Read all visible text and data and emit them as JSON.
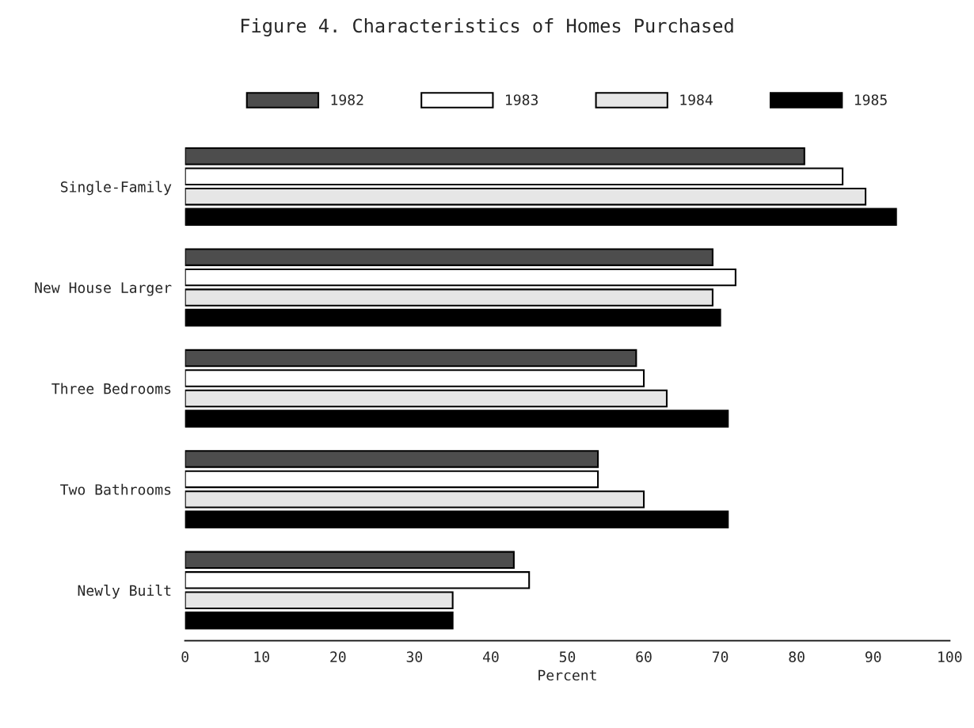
{
  "chart_data": {
    "type": "bar",
    "orientation": "horizontal",
    "title": "Figure 4. Characteristics of Homes Purchased",
    "xlabel": "Percent",
    "categories": [
      "Single-Family",
      "New House Larger",
      "Three Bedrooms",
      "Two Bathrooms",
      "Newly Built"
    ],
    "series": [
      {
        "name": "1982",
        "color": "#4d4d4d",
        "values": [
          81,
          69,
          59,
          54,
          43
        ]
      },
      {
        "name": "1983",
        "color": "#ffffff",
        "values": [
          86,
          72,
          60,
          54,
          45
        ]
      },
      {
        "name": "1984",
        "color": "#e6e6e6",
        "values": [
          89,
          69,
          63,
          60,
          35
        ]
      },
      {
        "name": "1985",
        "color": "#000000",
        "values": [
          93,
          70,
          71,
          71,
          35
        ]
      }
    ],
    "xlim": [
      0,
      100
    ],
    "xticks": [
      0,
      10,
      20,
      30,
      40,
      50,
      60,
      70,
      80,
      90,
      100
    ],
    "grid": false,
    "legend": "top"
  }
}
